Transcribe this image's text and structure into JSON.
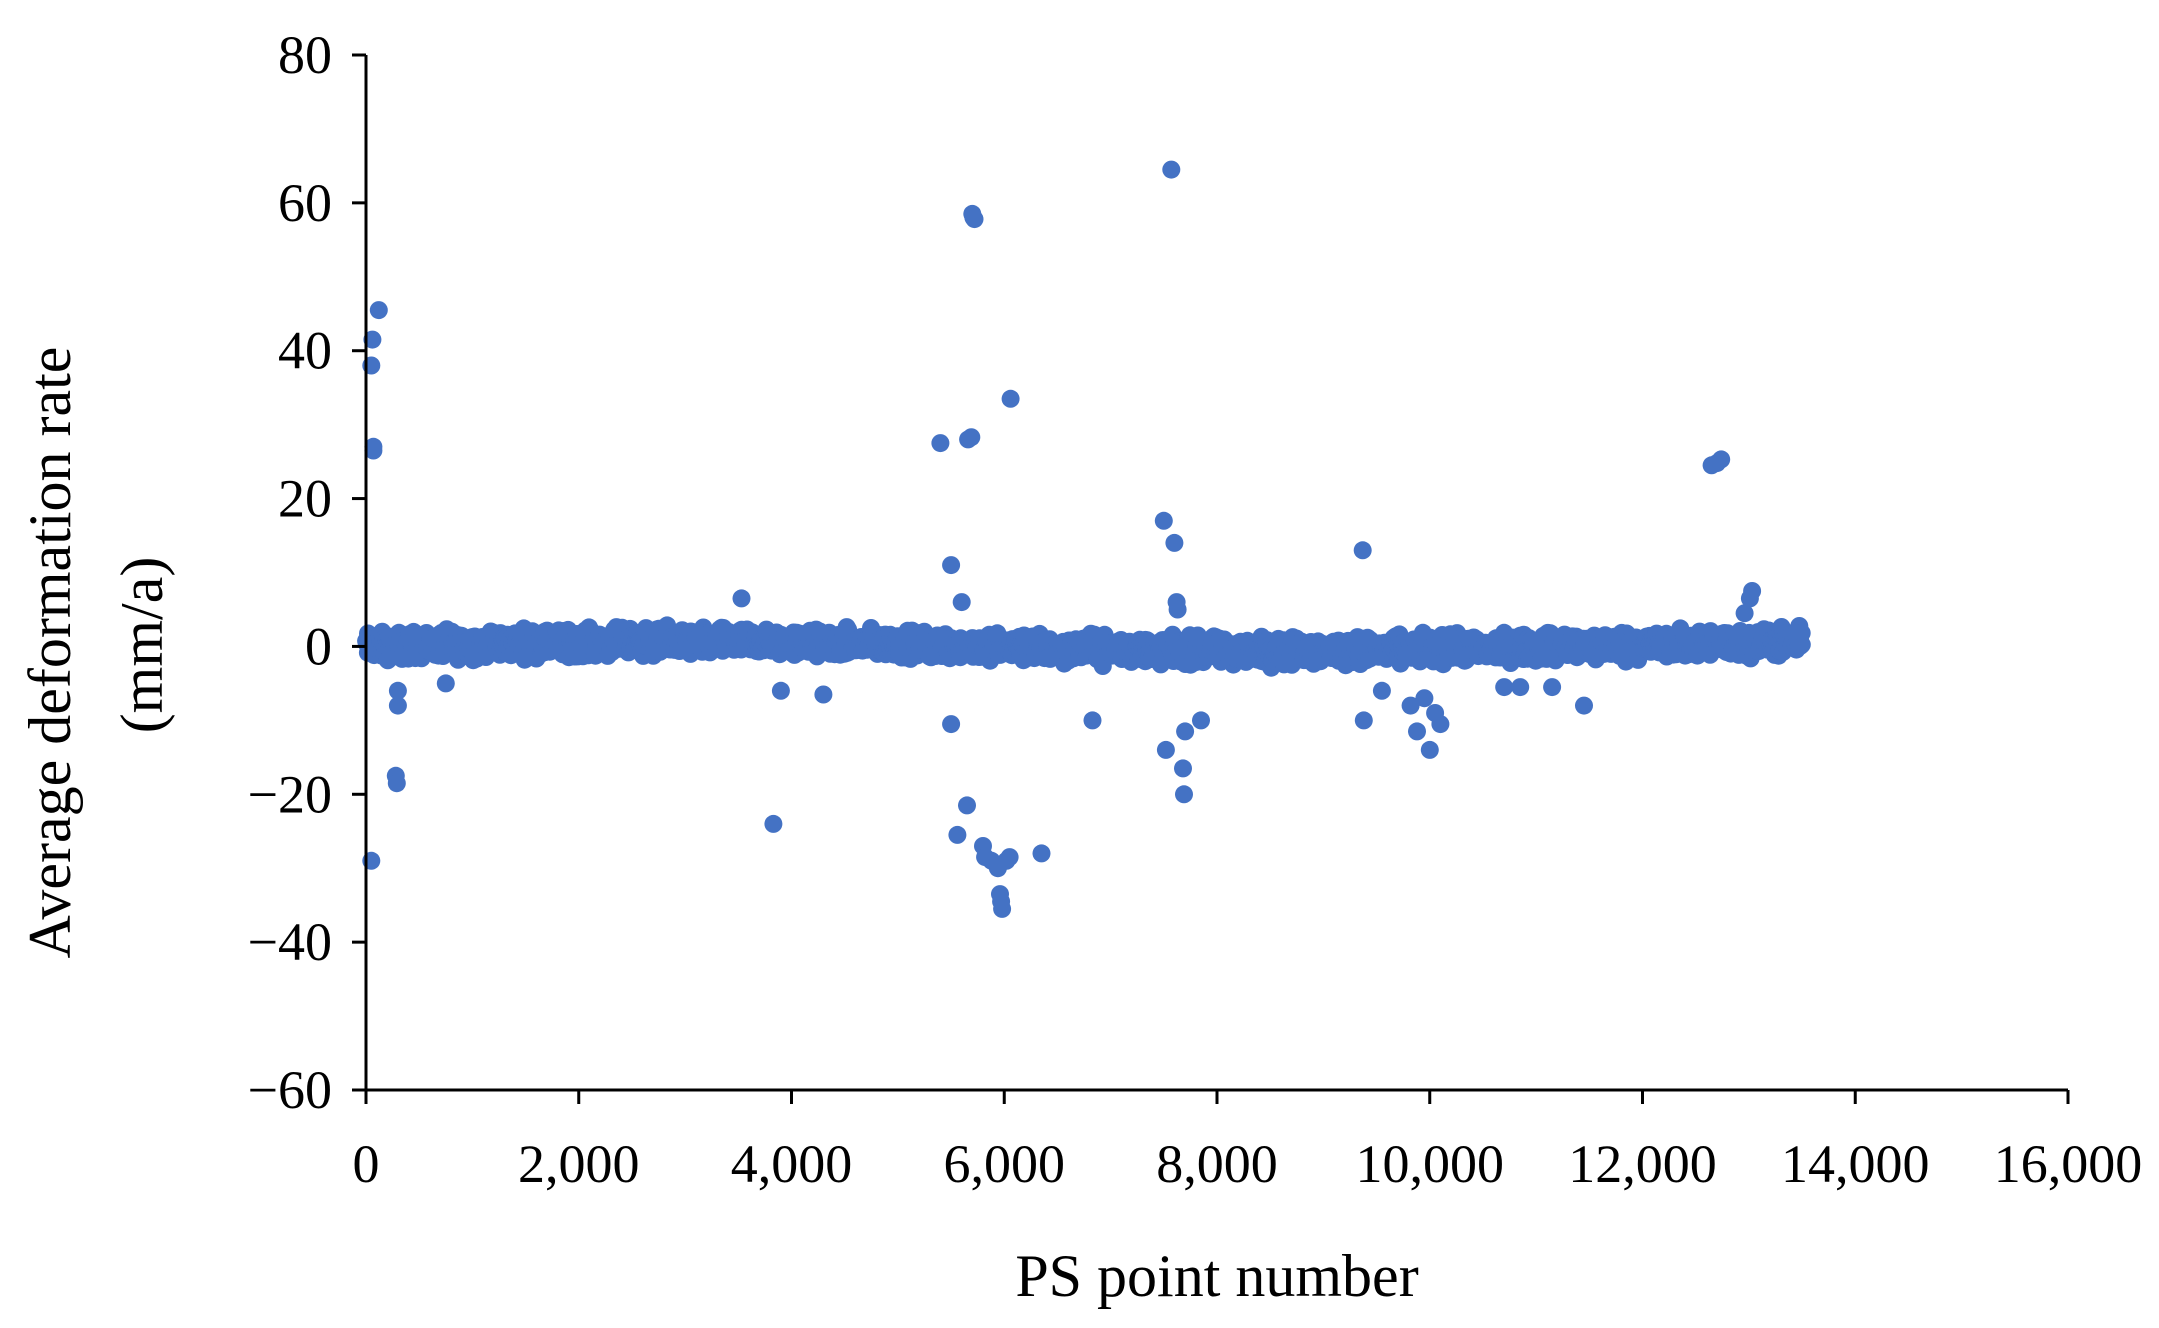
{
  "chart_data": {
    "type": "scatter",
    "title": "",
    "xlabel": "PS point number",
    "ylabel_lines": [
      "Average deformation rate",
      "(mm/a)"
    ],
    "xlim": [
      0,
      16000
    ],
    "ylim": [
      -60,
      80
    ],
    "x_ticks": [
      0,
      2000,
      4000,
      6000,
      8000,
      10000,
      12000,
      14000,
      16000
    ],
    "x_tick_labels": [
      "0",
      "2,000",
      "4,000",
      "6,000",
      "8,000",
      "10,000",
      "12,000",
      "14,000",
      "16,000"
    ],
    "y_ticks": [
      -60,
      -40,
      -20,
      0,
      20,
      40,
      60,
      80
    ],
    "y_tick_labels": [
      "−60",
      "−40",
      "−20",
      "0",
      "20",
      "40",
      "60",
      "80"
    ],
    "grid": false,
    "legend": "none",
    "point_color": "#4472C4",
    "dense_band": {
      "x_range": [
        0,
        13500
      ],
      "y_range": [
        -4,
        4
      ],
      "description": "dense band of about 13,500 points near zero"
    },
    "outliers": [
      {
        "x": 50,
        "y": 38
      },
      {
        "x": 60,
        "y": 41.5
      },
      {
        "x": 70,
        "y": 27
      },
      {
        "x": 70,
        "y": 26.5
      },
      {
        "x": 120,
        "y": 45.5
      },
      {
        "x": 50,
        "y": -29
      },
      {
        "x": 280,
        "y": -17.5
      },
      {
        "x": 290,
        "y": -18.5
      },
      {
        "x": 300,
        "y": -8
      },
      {
        "x": 300,
        "y": -6
      },
      {
        "x": 750,
        "y": -5
      },
      {
        "x": 3530,
        "y": 6.5
      },
      {
        "x": 3830,
        "y": -24
      },
      {
        "x": 3900,
        "y": -6
      },
      {
        "x": 4300,
        "y": -6.5
      },
      {
        "x": 5400,
        "y": 27.5
      },
      {
        "x": 5500,
        "y": 11
      },
      {
        "x": 5500,
        "y": -10.5
      },
      {
        "x": 5560,
        "y": -25.5
      },
      {
        "x": 5600,
        "y": 6
      },
      {
        "x": 5650,
        "y": -21.5
      },
      {
        "x": 5660,
        "y": 28
      },
      {
        "x": 5690,
        "y": 28.3
      },
      {
        "x": 5700,
        "y": 58.5
      },
      {
        "x": 5710,
        "y": 58
      },
      {
        "x": 5720,
        "y": 57.8
      },
      {
        "x": 5800,
        "y": -27
      },
      {
        "x": 5820,
        "y": -28.5
      },
      {
        "x": 5880,
        "y": -29
      },
      {
        "x": 5940,
        "y": -30
      },
      {
        "x": 5960,
        "y": -33.5
      },
      {
        "x": 5970,
        "y": -34.5
      },
      {
        "x": 5980,
        "y": -35.5
      },
      {
        "x": 6020,
        "y": -29
      },
      {
        "x": 6050,
        "y": -28.5
      },
      {
        "x": 6060,
        "y": 33.5
      },
      {
        "x": 6350,
        "y": -28
      },
      {
        "x": 6830,
        "y": -10
      },
      {
        "x": 7500,
        "y": 17
      },
      {
        "x": 7520,
        "y": -14
      },
      {
        "x": 7570,
        "y": 64.5
      },
      {
        "x": 7600,
        "y": 14
      },
      {
        "x": 7620,
        "y": 6
      },
      {
        "x": 7630,
        "y": 5
      },
      {
        "x": 7680,
        "y": -16.5
      },
      {
        "x": 7690,
        "y": -20
      },
      {
        "x": 7700,
        "y": -11.5
      },
      {
        "x": 7850,
        "y": -10
      },
      {
        "x": 9370,
        "y": 13
      },
      {
        "x": 9380,
        "y": -10
      },
      {
        "x": 9550,
        "y": -6
      },
      {
        "x": 9820,
        "y": -8
      },
      {
        "x": 9880,
        "y": -11.5
      },
      {
        "x": 9950,
        "y": -7
      },
      {
        "x": 10000,
        "y": -14
      },
      {
        "x": 10050,
        "y": -9
      },
      {
        "x": 10100,
        "y": -10.5
      },
      {
        "x": 10700,
        "y": -5.5
      },
      {
        "x": 10850,
        "y": -5.5
      },
      {
        "x": 11150,
        "y": -5.5
      },
      {
        "x": 11450,
        "y": -8
      },
      {
        "x": 12650,
        "y": 24.5
      },
      {
        "x": 12700,
        "y": 24.8
      },
      {
        "x": 12740,
        "y": 25.3
      },
      {
        "x": 12960,
        "y": 4.5
      },
      {
        "x": 13010,
        "y": 6.5
      },
      {
        "x": 13030,
        "y": 7.5
      }
    ]
  }
}
